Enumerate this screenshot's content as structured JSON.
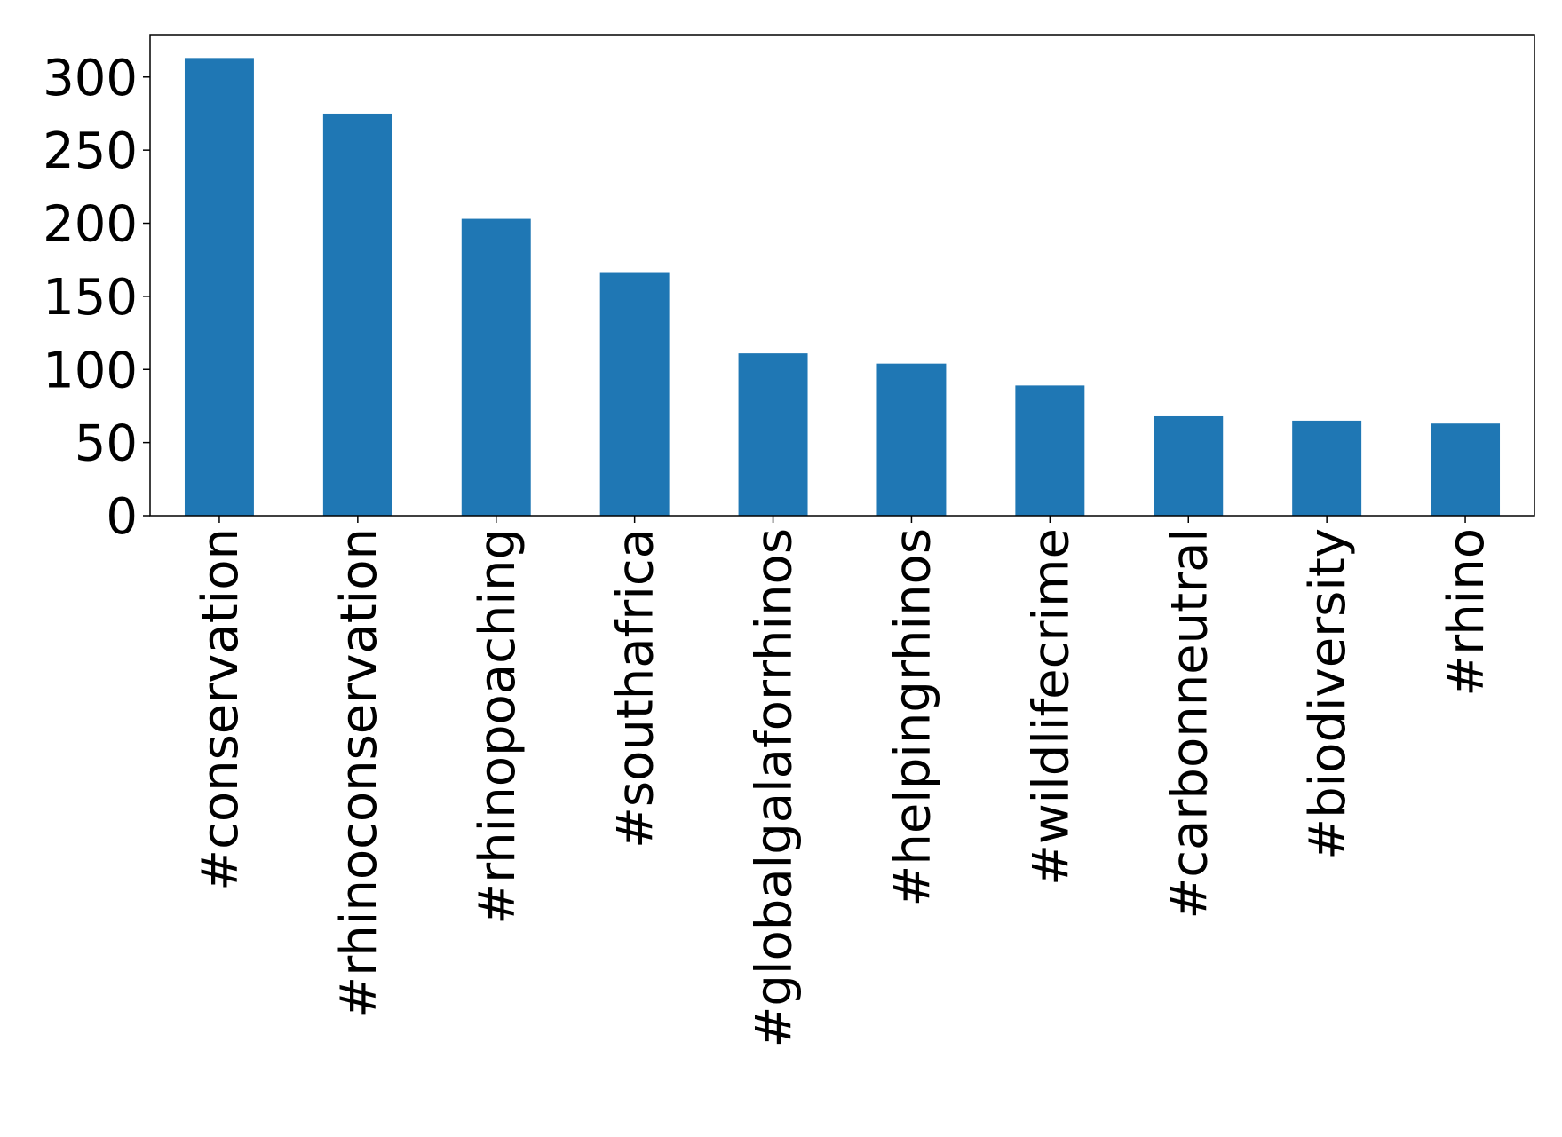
{
  "chart_data": {
    "type": "bar",
    "categories": [
      "#conservation",
      "#rhinoconservation",
      "#rhinopoaching",
      "#southafrica",
      "#globalgalaforrhinos",
      "#helpingrhinos",
      "#wildlifecrime",
      "#carbonneutral",
      "#biodiversity",
      "#rhino"
    ],
    "values": [
      313,
      275,
      203,
      166,
      111,
      104,
      89,
      68,
      65,
      63
    ],
    "color": "#1f77b4",
    "ylim": [
      0,
      329
    ],
    "yticks": [
      0,
      50,
      100,
      150,
      200,
      250,
      300
    ],
    "grid": false
  }
}
